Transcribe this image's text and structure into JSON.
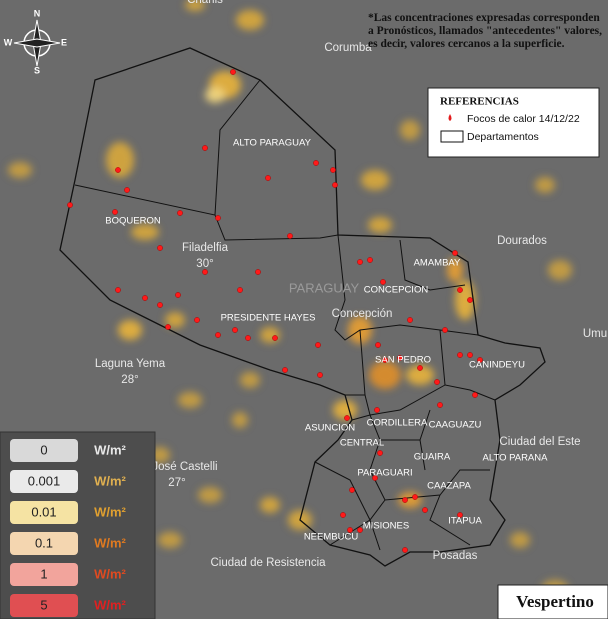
{
  "note": "*Las concentraciones expresadas corresponden a Pronósticos, llamados \"antecedentes\" valores, es decir, valores cercanos a la superficie.",
  "references": {
    "title": "REFERENCIAS",
    "items": [
      "Focos de calor 14/12/22",
      "Departamentos"
    ]
  },
  "compass": {
    "n": "N",
    "s": "S",
    "e": "E",
    "w": "W"
  },
  "places": [
    {
      "name": "Charlis"
    },
    {
      "name": "Corumba"
    },
    {
      "name": "Filadelfia",
      "temp": "30°"
    },
    {
      "name": "PARAGUAY"
    },
    {
      "name": "Concepción"
    },
    {
      "name": "Laguna Yema",
      "temp": "28°"
    },
    {
      "name": "an José Castelli",
      "temp": "27°"
    },
    {
      "name": "Dourados"
    },
    {
      "name": "Umu"
    },
    {
      "name": "Ciudad del Este"
    },
    {
      "name": "Ciudad de Resistencia"
    },
    {
      "name": "Posadas"
    }
  ],
  "departments": [
    "ALTO PARAGUAY",
    "BOQUERON",
    "PRESIDENTE HAYES",
    "AMAMBAY",
    "CONCEPCION",
    "SAN PEDRO",
    "CANINDEYU",
    "ASUNCION",
    "CORDILLERA",
    "CAAGUAZU",
    "CENTRAL",
    "GUAIRA",
    "ALTO PARANA",
    "PARAGUARI",
    "CAAZAPA",
    "ITAPUA",
    "MISIONES",
    "NEEMBUCU"
  ],
  "legend": {
    "levels": [
      "0",
      "0.001",
      "0.01",
      "0.1",
      "1",
      "5"
    ],
    "unit": "W/m²"
  },
  "period": "Vespertino"
}
